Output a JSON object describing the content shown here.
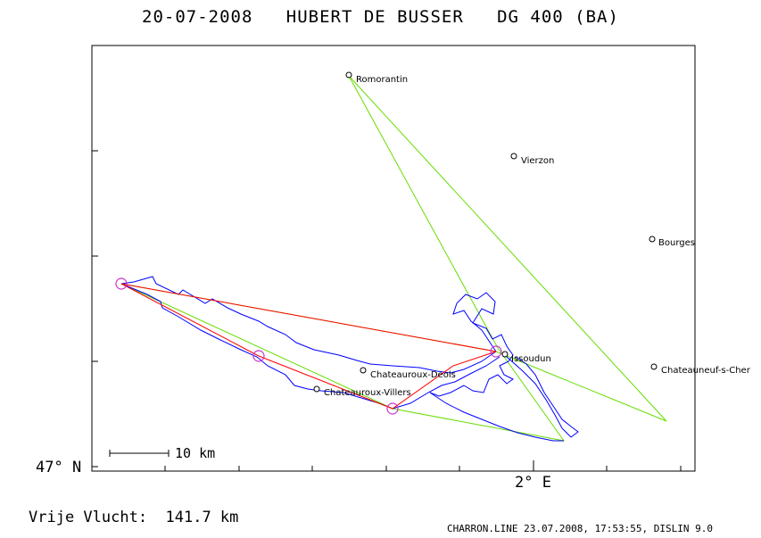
{
  "header": {
    "title": "20-07-2008   HUBERT DE BUSSER   DG 400 (BA)"
  },
  "axes": {
    "lat_label": "47° N",
    "lon_label": "2° E"
  },
  "scale_bar": {
    "label": "10 km"
  },
  "summary": {
    "distance_text": "Vrije Vlucht:  141.7 km"
  },
  "footer": {
    "text": "CHARRON.LINE 23.07.2008, 17:53:55, DISLIN 9.0"
  },
  "towns": [
    {
      "name": "Romorantin"
    },
    {
      "name": "Vierzon"
    },
    {
      "name": "Bourges"
    },
    {
      "name": "Issoudun"
    },
    {
      "name": "Chateauroux-Deols"
    },
    {
      "name": "Chateauroux-Villers"
    },
    {
      "name": "Chateauneuf-s-Cher"
    }
  ],
  "colors": {
    "track": "#0000ff",
    "task": "#00cc00",
    "optimized": "#ff0000",
    "turnpoint": "#cc33cc",
    "frame": "#000000"
  }
}
